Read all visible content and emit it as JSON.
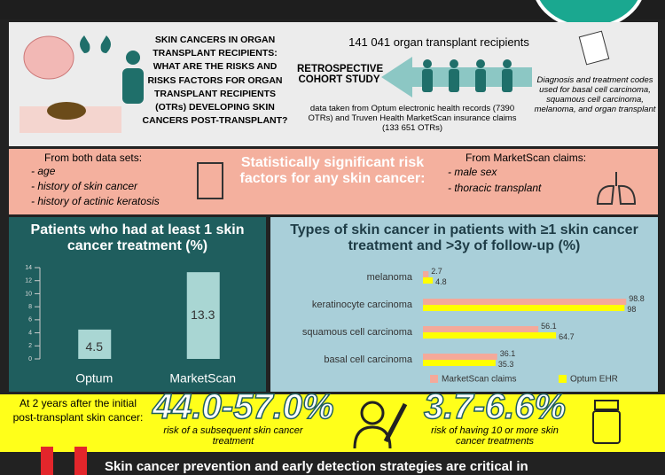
{
  "header": {
    "title": "SKIN CANCERS IN ORGAN TRANSPLANT RECIPIENTS:",
    "question": "WHAT ARE THE RISKS AND RISKS FACTORS FOR ORGAN TRANSPLANT RECIPIENTS (OTRs) DEVELOPING SKIN CANCERS POST-TRANSPLANT?"
  },
  "study": {
    "population": "141 041 organ transplant recipients",
    "design": "RETROSPECTIVE COHORT STUDY",
    "source": "data taken from Optum electronic health records (7390 OTRs) and Truven Health MarketScan insurance claims (133 651 OTRs)",
    "codes": "Diagnosis and treatment codes used for basal cell carcinoma, squamous cell carcinoma, melanoma, and organ transplant"
  },
  "risk_factors": {
    "title": "Statistically significant risk factors for any skin cancer:",
    "both": {
      "heading": "From both data sets:",
      "items": [
        "age",
        "history of skin cancer",
        "history of actinic keratosis"
      ]
    },
    "marketscan": {
      "heading": "From MarketScan claims:",
      "items": [
        "male sex",
        "thoracic transplant"
      ]
    }
  },
  "chart_data": [
    {
      "type": "bar",
      "title": "Patients who had at least 1 skin cancer treatment (%)",
      "categories": [
        "Optum",
        "MarketScan"
      ],
      "values": [
        4.5,
        13.3
      ],
      "color": "#a9d6d3",
      "ylim": [
        0,
        14
      ],
      "yticks": [
        0,
        2,
        4,
        6,
        8,
        10,
        12,
        14
      ]
    },
    {
      "type": "barh",
      "title": "Types of skin cancer in patients with ≥1 skin cancer treatment and >3y of follow-up (%)",
      "categories": [
        "melanoma",
        "keratinocyte carcinoma",
        "squamous cell carcinoma",
        "basal cell carcinoma"
      ],
      "xlim": [
        0,
        100
      ],
      "legend": "bottom",
      "series": [
        {
          "name": "MarketScan claims",
          "color": "#f4a99a",
          "values": [
            2.7,
            98.8,
            56.1,
            36.1
          ]
        },
        {
          "name": "Optum EHR",
          "color": "#ffff00",
          "values": [
            4.8,
            98,
            64.7,
            35.3
          ]
        }
      ]
    }
  ],
  "outcomes": {
    "intro": "At 2 years after the initial post-transplant skin cancer:",
    "items": [
      {
        "value": "44.0-57.0%",
        "label": "risk of a subsequent skin cancer treatment"
      },
      {
        "value": "3.7-6.6%",
        "label": "risk of having 10 or more skin cancer treatments"
      }
    ]
  },
  "conclusion": "Skin cancer prevention and early detection strategies are critical in"
}
